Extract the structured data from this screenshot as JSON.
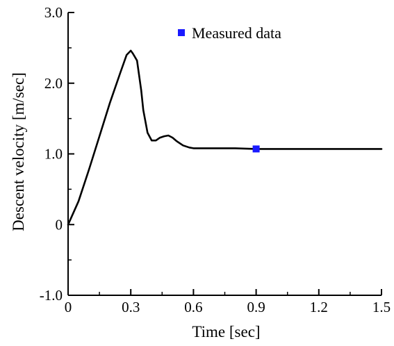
{
  "chart_data": {
    "type": "line",
    "xlabel": "Time [sec]",
    "ylabel": "Descent velocity [m/sec]",
    "xlim": [
      0,
      1.5
    ],
    "ylim": [
      -1.0,
      3.0
    ],
    "x_ticks": [
      "0",
      "0.3",
      "0.6",
      "0.9",
      "1.2",
      "1.5"
    ],
    "y_ticks": [
      "-1.0",
      "0",
      "1.0",
      "2.0",
      "3.0"
    ],
    "grid": false,
    "legend_position": "top-right",
    "series": [
      {
        "kind": "line",
        "color": "#000000",
        "x": [
          0,
          0.05,
          0.1,
          0.15,
          0.2,
          0.25,
          0.28,
          0.3,
          0.31,
          0.33,
          0.35,
          0.36,
          0.38,
          0.4,
          0.42,
          0.44,
          0.46,
          0.48,
          0.5,
          0.52,
          0.55,
          0.58,
          0.6,
          0.65,
          0.7,
          0.8,
          0.9,
          1.0,
          1.1,
          1.2,
          1.3,
          1.4,
          1.5
        ],
        "y": [
          0,
          0.33,
          0.78,
          1.25,
          1.72,
          2.15,
          2.4,
          2.46,
          2.42,
          2.32,
          1.9,
          1.62,
          1.3,
          1.19,
          1.19,
          1.23,
          1.25,
          1.26,
          1.23,
          1.18,
          1.12,
          1.09,
          1.08,
          1.08,
          1.08,
          1.08,
          1.07,
          1.07,
          1.07,
          1.07,
          1.07,
          1.07,
          1.07
        ]
      },
      {
        "name": "Measured data",
        "kind": "marker",
        "color": "#1a1aff",
        "x": [
          0.9
        ],
        "y": [
          1.07
        ]
      }
    ]
  }
}
